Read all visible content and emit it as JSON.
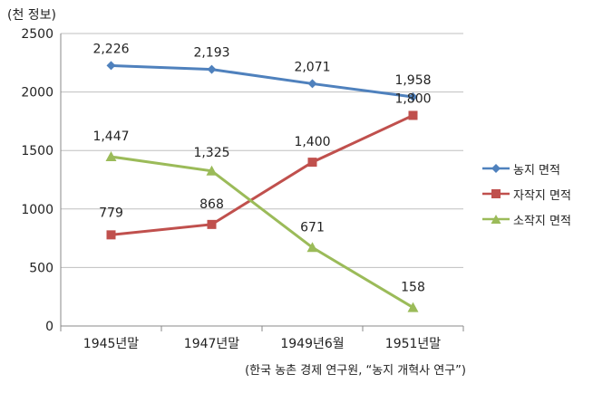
{
  "unit_label": "(천 정보)",
  "source_note": "(한국 농촌 경제 연구원, “농지 개혁사 연구”)",
  "chart_data": {
    "type": "line",
    "categories": [
      "1945년말",
      "1947년말",
      "1949년6월",
      "1951년말"
    ],
    "ylim": [
      0,
      2500
    ],
    "yticks": [
      0,
      500,
      1000,
      1500,
      2000,
      2500
    ],
    "grid": true,
    "legend_position": "right",
    "series": [
      {
        "name": "농지 면적",
        "values": [
          2226,
          2193,
          2071,
          1958
        ],
        "labels": [
          "2,226",
          "2,193",
          "2,071",
          "1,958"
        ],
        "color": "#4f81bd",
        "marker": "diamond"
      },
      {
        "name": "자작지 면적",
        "values": [
          779,
          868,
          1400,
          1800
        ],
        "labels": [
          "779",
          "868",
          "1,400",
          "1,800"
        ],
        "color": "#c0504d",
        "marker": "square"
      },
      {
        "name": "소작지 면적",
        "values": [
          1447,
          1325,
          671,
          158
        ],
        "labels": [
          "1,447",
          "1,325",
          "671",
          "158"
        ],
        "color": "#9bbb59",
        "marker": "triangle"
      }
    ]
  }
}
